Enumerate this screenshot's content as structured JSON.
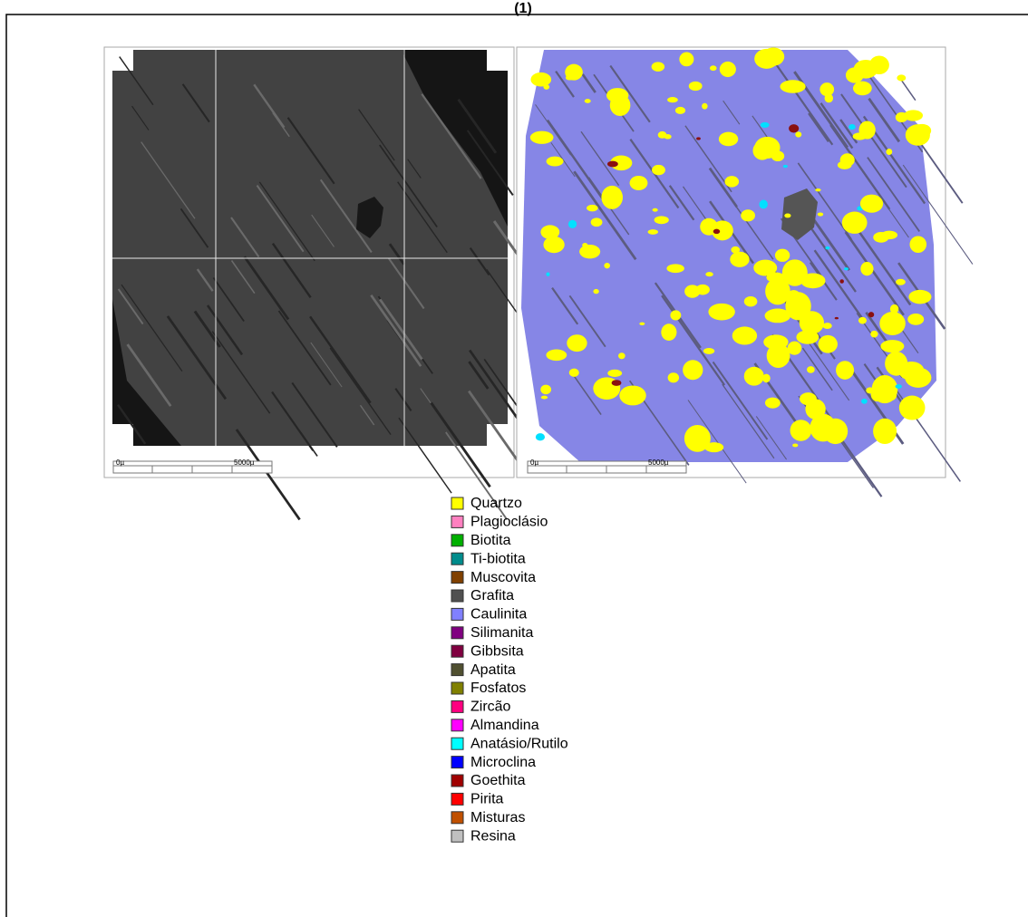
{
  "title": "(1)",
  "panels": [
    {
      "scale_bar": {
        "start": "0µ",
        "end": "5000µ"
      }
    },
    {
      "scale_bar": {
        "start": "0µ",
        "end": "5000µ"
      }
    }
  ],
  "legend": [
    {
      "label": "Quartzo",
      "color": "#ffff00"
    },
    {
      "label": "Plagioclásio",
      "color": "#ff80c0"
    },
    {
      "label": "Biotita",
      "color": "#00b000"
    },
    {
      "label": "Ti-biotita",
      "color": "#008c8c"
    },
    {
      "label": "Muscovita",
      "color": "#804000"
    },
    {
      "label": "Grafita",
      "color": "#505050"
    },
    {
      "label": "Caulinita",
      "color": "#8080ff"
    },
    {
      "label": "Silimanita",
      "color": "#800080"
    },
    {
      "label": "Gibbsita",
      "color": "#800040"
    },
    {
      "label": "Apatita",
      "color": "#505030"
    },
    {
      "label": "Fosfatos",
      "color": "#808000"
    },
    {
      "label": "Zircão",
      "color": "#ff0080"
    },
    {
      "label": "Almandina",
      "color": "#ff00ff"
    },
    {
      "label": "Anatásio/Rutilo",
      "color": "#00ffff"
    },
    {
      "label": "Microclina",
      "color": "#0000ff"
    },
    {
      "label": "Goethita",
      "color": "#a00000"
    },
    {
      "label": "Pirita",
      "color": "#ff0000"
    },
    {
      "label": "Misturas",
      "color": "#c05000"
    },
    {
      "label": "Resina",
      "color": "#c0c0c0"
    }
  ]
}
